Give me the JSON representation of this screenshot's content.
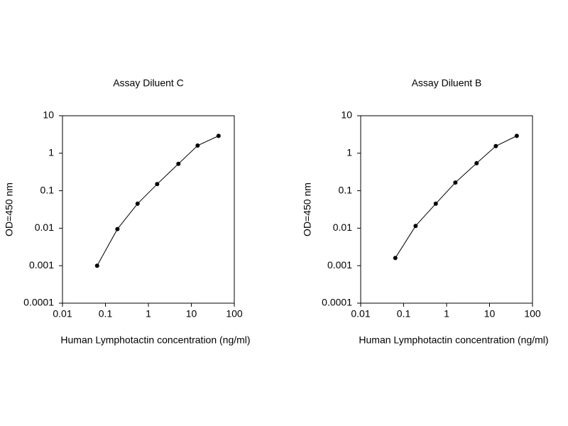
{
  "chart_data": [
    {
      "type": "line",
      "title": "Assay Diluent C",
      "x_label": "Human Lymphotactin concentration (ng/ml)",
      "y_label": "OD=450 nm",
      "xscale": "log",
      "yscale": "log",
      "color": "#000000",
      "x": [
        0.064,
        0.19,
        0.56,
        1.6,
        5,
        14,
        43
      ],
      "values": [
        0.001,
        0.0095,
        0.045,
        0.15,
        0.52,
        1.6,
        2.9
      ],
      "xlim": [
        0.01,
        100
      ],
      "xticks": [
        0.01,
        0.1,
        1,
        10,
        100
      ],
      "ylim": [
        0.0001,
        10
      ],
      "yticks": [
        0.0001,
        0.001,
        0.01,
        0.1,
        1,
        10
      ]
    },
    {
      "type": "line",
      "title": "Assay Diluent B",
      "x_label": "Human Lymphotactin concentration (ng/ml)",
      "y_label": "OD=450 nm",
      "xscale": "log",
      "yscale": "log",
      "color": "#000000",
      "x": [
        0.064,
        0.19,
        0.56,
        1.6,
        5,
        14,
        43
      ],
      "values": [
        0.0016,
        0.0115,
        0.045,
        0.165,
        0.54,
        1.55,
        2.9
      ],
      "xlim": [
        0.01,
        100
      ],
      "xticks": [
        0.01,
        0.1,
        1,
        10,
        100
      ],
      "ylim": [
        0.0001,
        10
      ],
      "yticks": [
        0.0001,
        0.001,
        0.01,
        0.1,
        1,
        10
      ]
    }
  ]
}
